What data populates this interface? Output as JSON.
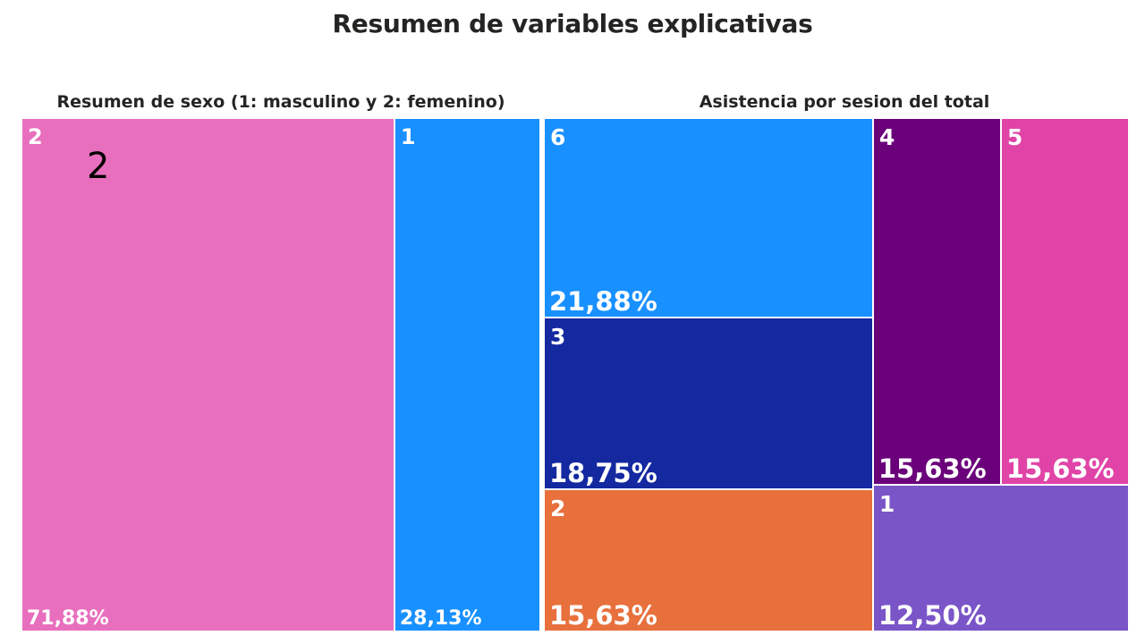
{
  "title": "Resumen de variables explicativas",
  "overlay_text": "2",
  "chart_data": [
    {
      "type": "treemap",
      "title": "Resumen de sexo (1: masculino y 2: femenino)",
      "categories": [
        "2",
        "1"
      ],
      "values": [
        71.88,
        28.13
      ],
      "value_labels": [
        "71,88%",
        "28,13%"
      ],
      "colors": [
        "#E86FBD",
        "#1890FF"
      ]
    },
    {
      "type": "treemap",
      "title": "Asistencia por sesion del total",
      "categories": [
        "6",
        "3",
        "2",
        "4",
        "5",
        "1"
      ],
      "values": [
        21.88,
        18.75,
        15.63,
        15.63,
        15.63,
        12.5
      ],
      "value_labels": [
        "21,88%",
        "18,75%",
        "15,63%",
        "15,63%",
        "15,63%",
        "12,50%"
      ],
      "colors": [
        "#1890FF",
        "#1428A0",
        "#E8703D",
        "#6B007B",
        "#E044A7",
        "#7A55C8"
      ]
    }
  ]
}
